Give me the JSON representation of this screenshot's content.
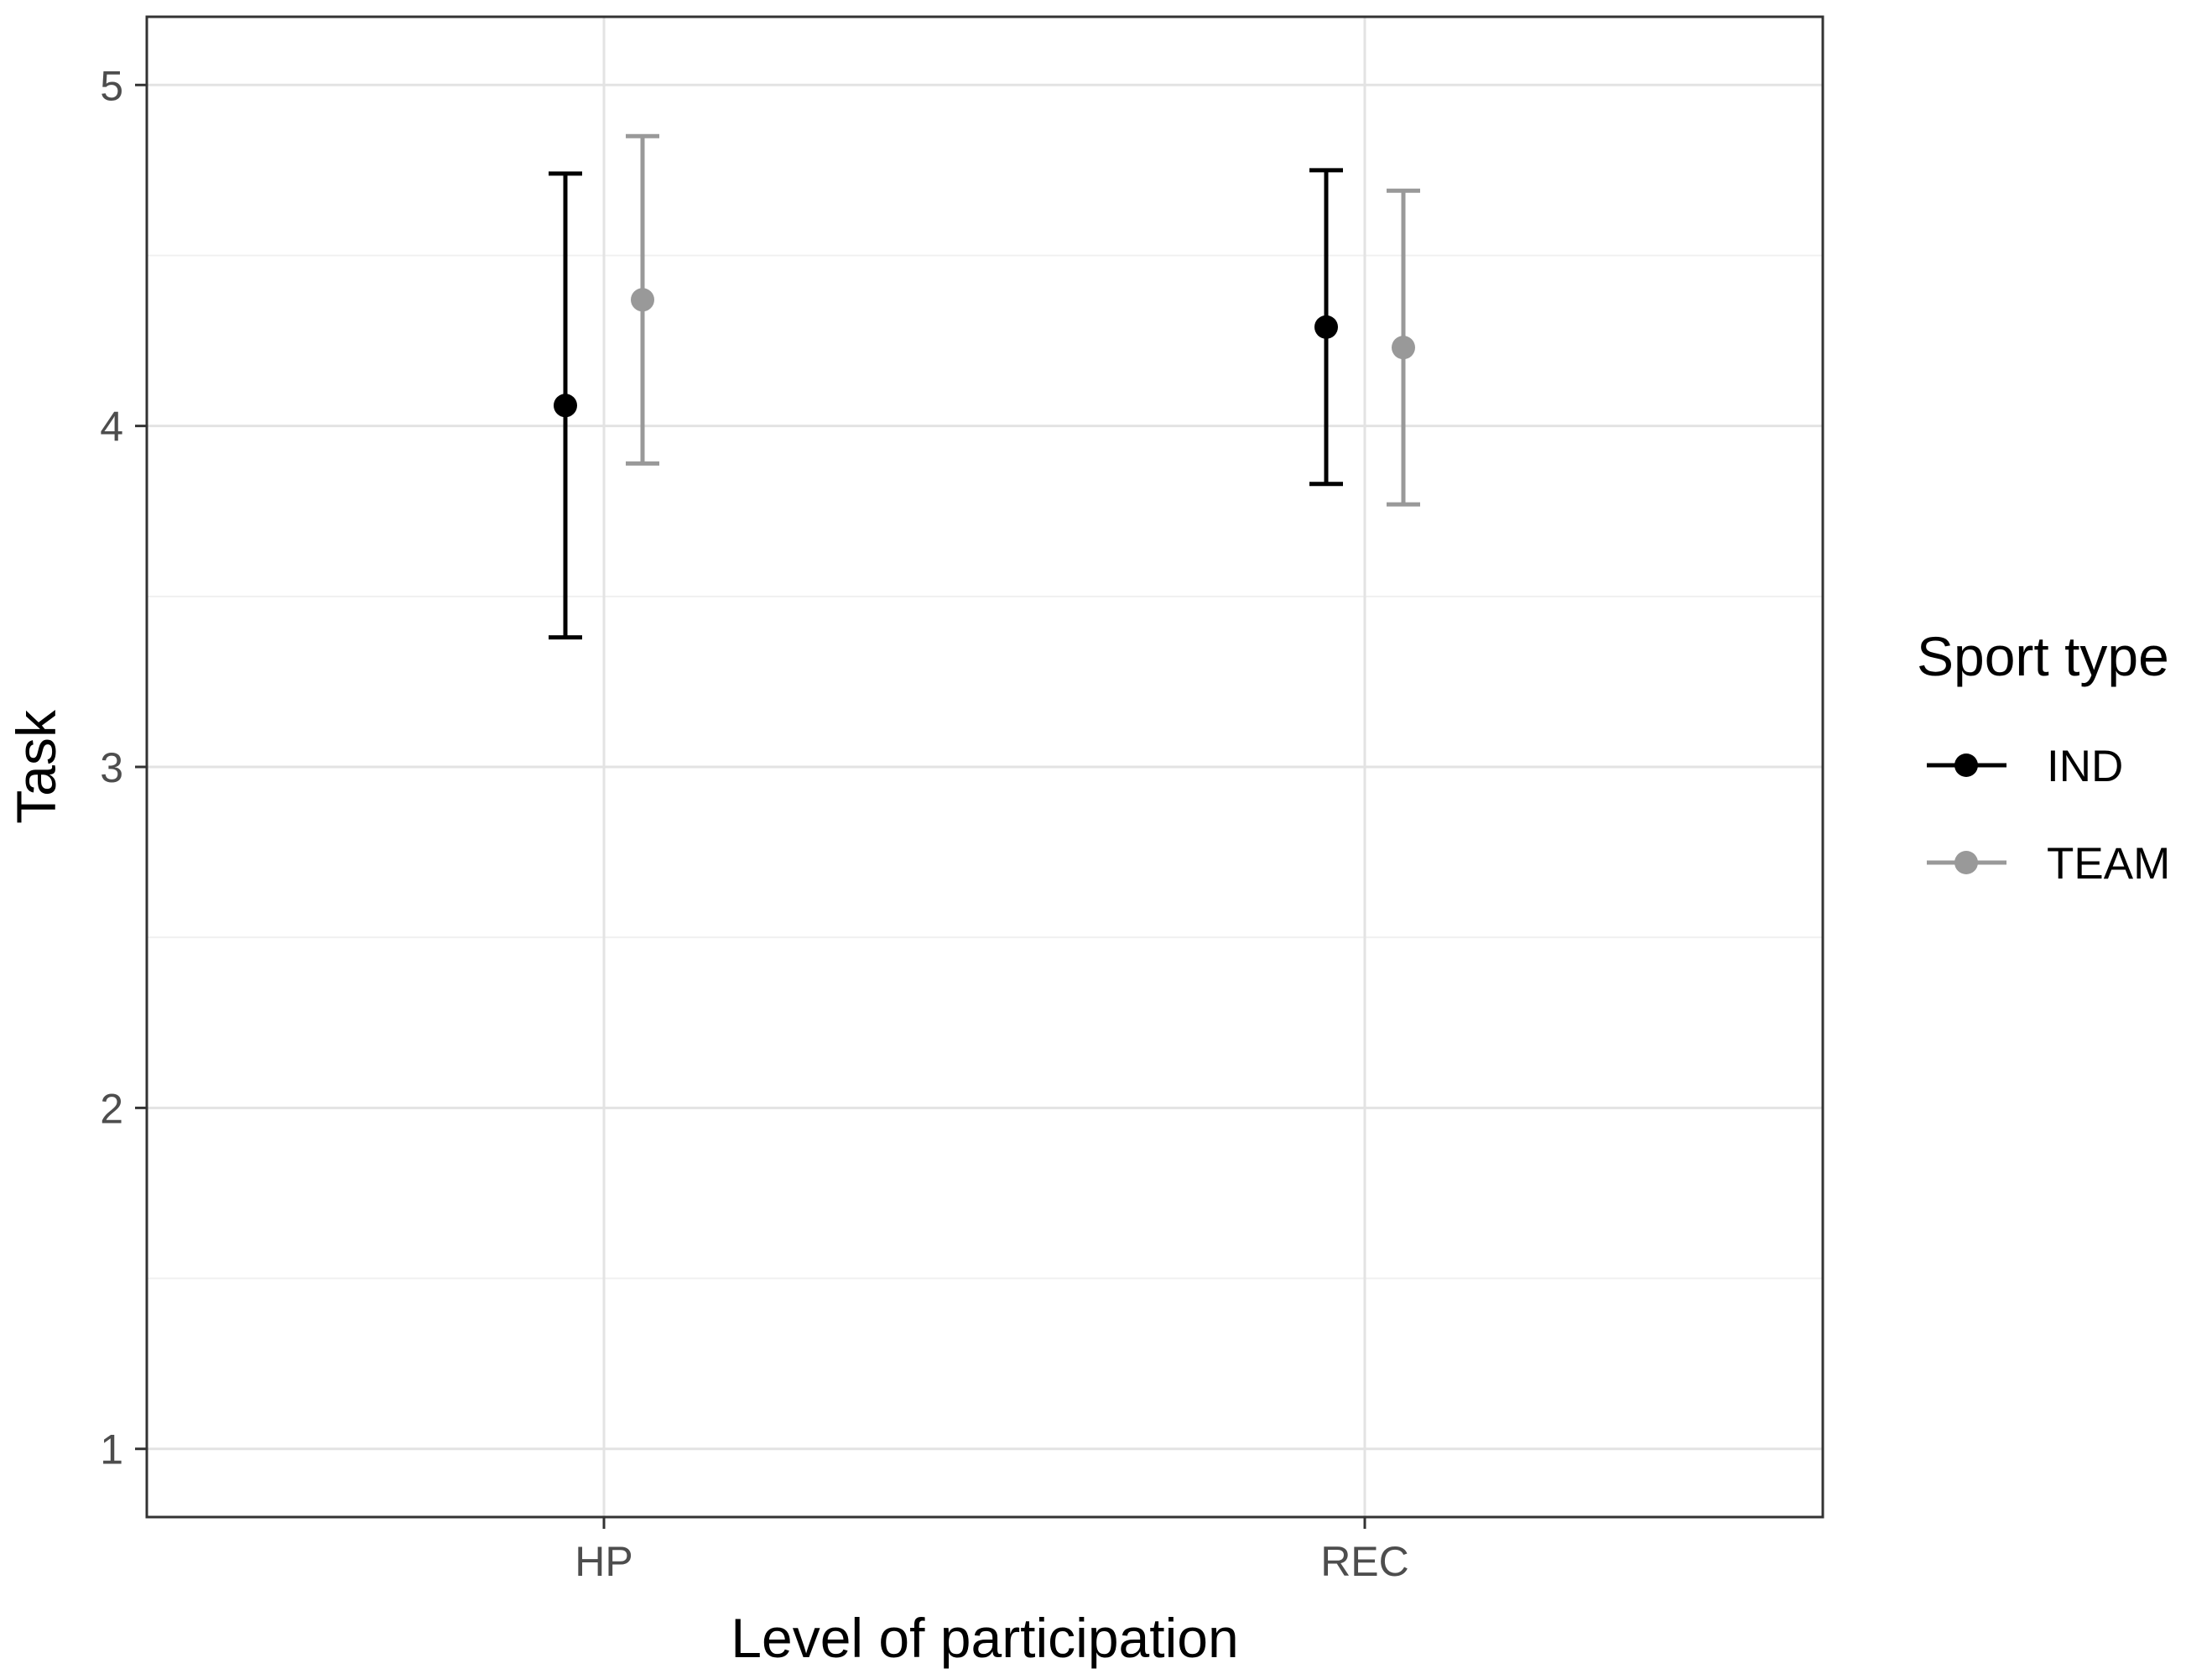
{
  "chart_data": {
    "type": "scatter",
    "subtype": "point-range with error bars",
    "xlabel": "Level of participation",
    "ylabel": "Task",
    "categories": [
      "HP",
      "REC"
    ],
    "ylim": [
      0.8,
      5.2
    ],
    "yticks": [
      1,
      2,
      3,
      4,
      5
    ],
    "grid": true,
    "legend": {
      "title": "Sport type",
      "position": "right"
    },
    "series": [
      {
        "name": "IND",
        "color": "#000000",
        "points": [
          {
            "category": "HP",
            "y": 4.06,
            "ymin": 3.38,
            "ymax": 4.74
          },
          {
            "category": "REC",
            "y": 4.29,
            "ymin": 3.83,
            "ymax": 4.75
          }
        ]
      },
      {
        "name": "TEAM",
        "color": "#999999",
        "points": [
          {
            "category": "HP",
            "y": 4.37,
            "ymin": 3.89,
            "ymax": 4.85
          },
          {
            "category": "REC",
            "y": 4.23,
            "ymin": 3.77,
            "ymax": 4.69
          }
        ]
      }
    ]
  }
}
